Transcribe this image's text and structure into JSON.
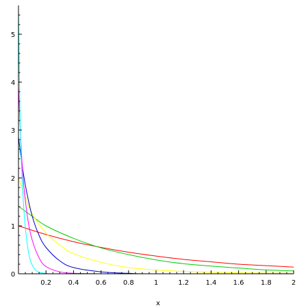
{
  "chart_data": {
    "type": "line",
    "title": "",
    "xlabel": "x",
    "ylabel": "",
    "xlim": [
      0,
      2
    ],
    "ylim": [
      0,
      5.6
    ],
    "grid": false,
    "legend": "none",
    "x_ticks": [
      {
        "value": 0.2,
        "label": "0.2"
      },
      {
        "value": 0.4,
        "label": "0.4"
      },
      {
        "value": 0.6,
        "label": "0.6"
      },
      {
        "value": 0.8,
        "label": "0.8"
      },
      {
        "value": 1,
        "label": "1"
      },
      {
        "value": 1.2,
        "label": "1.2"
      },
      {
        "value": 1.4,
        "label": "1.4"
      },
      {
        "value": 1.6,
        "label": "1.6"
      },
      {
        "value": 1.8,
        "label": "1.8"
      },
      {
        "value": 2,
        "label": "2"
      }
    ],
    "y_ticks": [
      {
        "value": 0,
        "label": "0"
      },
      {
        "value": 1,
        "label": "1"
      },
      {
        "value": 2,
        "label": "2"
      },
      {
        "value": 3,
        "label": "3"
      },
      {
        "value": 4,
        "label": "4"
      },
      {
        "value": 5,
        "label": "5"
      }
    ],
    "series": [
      {
        "color": "#ff0000",
        "x": [
          0,
          0.2,
          0.4,
          0.6,
          0.8,
          1.0,
          1.2,
          1.4,
          1.6,
          1.8,
          2.0
        ],
        "y": [
          1.0,
          0.82,
          0.67,
          0.55,
          0.45,
          0.37,
          0.3,
          0.25,
          0.2,
          0.17,
          0.14
        ]
      },
      {
        "color": "#00cc00",
        "x": [
          0,
          0.1,
          0.2,
          0.4,
          0.6,
          0.8,
          1.0,
          1.2,
          1.4,
          1.6,
          1.8,
          2.0
        ],
        "y": [
          1.41,
          1.2,
          1.0,
          0.74,
          0.54,
          0.4,
          0.29,
          0.21,
          0.16,
          0.12,
          0.08,
          0.06
        ]
      },
      {
        "color": "#ffff00",
        "x": [
          0,
          0.05,
          0.1,
          0.2,
          0.3,
          0.4,
          0.6,
          0.8,
          1.0,
          1.2,
          1.4,
          1.6,
          2.0
        ],
        "y": [
          2.0,
          1.6,
          1.25,
          0.85,
          0.6,
          0.42,
          0.24,
          0.13,
          0.08,
          0.05,
          0.03,
          0.02,
          0.01
        ]
      },
      {
        "color": "#0000cc",
        "x": [
          0,
          0.03,
          0.06,
          0.1,
          0.15,
          0.2,
          0.3,
          0.4,
          0.6,
          0.8,
          1.0,
          2.0
        ],
        "y": [
          2.85,
          2.2,
          1.7,
          1.2,
          0.8,
          0.55,
          0.27,
          0.13,
          0.04,
          0.01,
          0.0,
          0.0
        ]
      },
      {
        "color": "#ff00ff",
        "x": [
          0,
          0.02,
          0.04,
          0.07,
          0.1,
          0.15,
          0.2,
          0.3,
          0.4,
          0.6,
          1.0,
          2.0
        ],
        "y": [
          3.9,
          2.6,
          1.8,
          1.1,
          0.7,
          0.33,
          0.15,
          0.04,
          0.01,
          0.0,
          0.0,
          0.0
        ]
      },
      {
        "color": "#00ffff",
        "x": [
          0,
          0.01,
          0.02,
          0.04,
          0.06,
          0.08,
          0.1,
          0.12,
          0.15,
          0.2,
          0.3,
          1.0,
          2.0
        ],
        "y": [
          5.5,
          3.5,
          2.4,
          1.3,
          0.7,
          0.35,
          0.18,
          0.09,
          0.03,
          0.01,
          0.0,
          0.0,
          0.0
        ]
      }
    ]
  }
}
